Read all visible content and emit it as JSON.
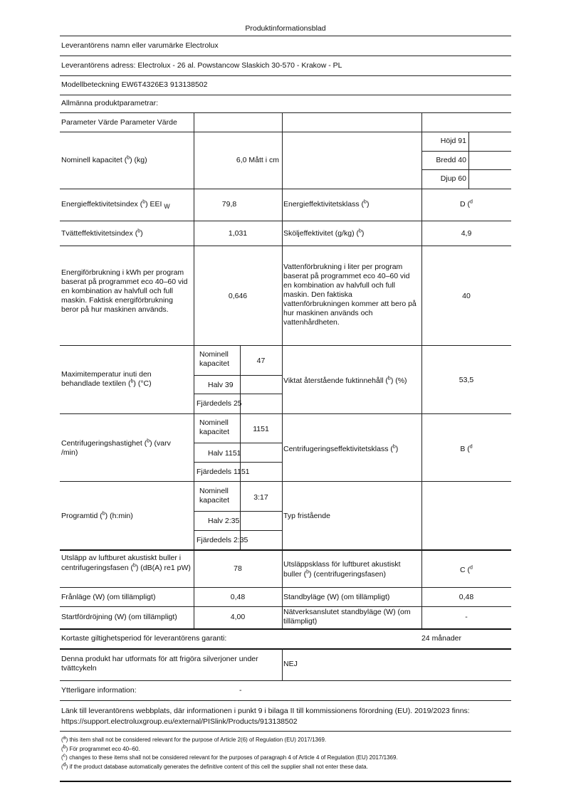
{
  "title": "Produktinformationsblad",
  "supplier_name": "Leverantörens namn eller varumärke Electrolux",
  "supplier_address": "Leverantörens adress: Electrolux - 26 al. Powstancow Slaskich 30-570 - Krakow - PL",
  "model": "Modellbeteckning EW6T4326E3 913138502",
  "general_params": "Allmänna produktparametrar:",
  "table_header": "Parameter Värde Parameter Värde",
  "rows": {
    "capacity": {
      "pre": "Nominell kapacitet (",
      "note": "b",
      "post": ") (kg)",
      "value": "6,0 Mått i cm",
      "height": "Höjd 91",
      "width": "Bredd 40",
      "depth": "Djup 60"
    },
    "eei": {
      "pre": "Energieffektivitetsindex (",
      "note": "b",
      "post": ") EEI",
      "sub": "W",
      "value": "79,8",
      "p2_pre": "Energieffektivitetsklass (",
      "p2_note": "b",
      "p2_post": ")",
      "v2_pre": "D (",
      "v2_note": "d",
      "v2_post": ""
    },
    "wash": {
      "pre": "Tvätteffektivitetsindex (",
      "note": "b",
      "post": ")",
      "value": "1,031",
      "p2_pre": "Sköljeffektivitet (g/kg) (",
      "p2_note": "b",
      "p2_post": ")",
      "v2": "4,9"
    },
    "energy": {
      "label": "Energiförbrukning i kWh per program baserat på programmet eco 40–60 vid en kombination av halvfull och full maskin. Faktisk energiförbrukning beror på hur maskinen används.",
      "value": "0,646",
      "p2": "Vattenförbrukning i liter per program baserat på programmet eco 40–60 vid en kombination av halvfull och full maskin. Den faktiska vattenförbrukningen kommer att bero på hur maskinen används och vattenhårdheten.",
      "v2": "40"
    },
    "temp": {
      "pre": "Maximitemperatur inuti den behandlade textilen (",
      "note": "b",
      "post": ") (°C)",
      "nominal_label": "Nominell kapacitet",
      "nominal": "47",
      "half": "Halv 39",
      "quarter": "Fjärdedels 25",
      "p2_pre": "Viktat återstående fuktinnehåll (",
      "p2_note": "b",
      "p2_post": ") (%)",
      "v2": "53,5"
    },
    "spin": {
      "pre": "Centrifugeringshastighet (",
      "note": "b",
      "post": ") (varv /min)",
      "nominal_label": "Nominell kapacitet",
      "nominal": "1151",
      "half": "Halv 1151",
      "quarter": "Fjärdedels 1151",
      "p2_pre": "Centrifugeringseffektivitetsklass (",
      "p2_note": "b",
      "p2_post": ")",
      "v2_pre": "B (",
      "v2_note": "d",
      "v2_post": ""
    },
    "time": {
      "pre": "Programtid (",
      "note": "b",
      "post": ") (h:min)",
      "nominal_label": "Nominell kapacitet",
      "nominal": "3:17",
      "half": "Halv 2:35",
      "quarter": "Fjärdedels 2:35",
      "p2": "Typ fristående"
    },
    "noise": {
      "pre": "Utsläpp av luftburet akustiskt buller i centrifugeringsfasen (",
      "note": "b",
      "post": ") (dB(A) re1 pW)",
      "value": "78",
      "p2_pre": "Utsläppsklass för luftburet akustiskt buller (",
      "p2_note": "b",
      "p2_post": ") (centrifugeringsfasen)",
      "v2_pre": "C (",
      "v2_note": "d",
      "v2_post": ""
    },
    "off": {
      "label": "Frånläge (W) (om tillämpligt)",
      "value": "0,48",
      "p2": "Standbyläge (W) (om tillämpligt)",
      "v2": "0,48"
    },
    "delay": {
      "label": "Startfördröjning (W) (om tillämpligt)",
      "value": "4,00",
      "p2": "Nätverksanslutet standbyläge (W) (om tillämpligt)",
      "v2": "-"
    }
  },
  "warranty": {
    "label": "Kortaste giltighetsperiod för leverantörens garanti:",
    "value": "24 månader"
  },
  "silver": {
    "label": "Denna produkt har utformats för att frigöra silverjoner under tvättcykeln",
    "value": "NEJ"
  },
  "extra": {
    "label": "Ytterligare information:",
    "value": "-"
  },
  "link_text": "Länk till leverantörens webbplats, där informationen i punkt 9 i bilaga II till kommissionens förordning (EU). 2019/2023 finns: https://support.electroluxgroup.eu/external/PISlink/Products/913138502",
  "footnotes": [
    {
      "mark": "a",
      "text": "this item shall not be considered relevant for the purpose of Article 2(6) of Regulation (EU) 2017/1369."
    },
    {
      "mark": "b",
      "text": "För programmet eco 40–60."
    },
    {
      "mark": "c",
      "text": "changes to these items shall not be considered relevant for the purposes of paragraph 4 of Article 4 of Regulation (EU) 2017/1369."
    },
    {
      "mark": "d",
      "text": "if the product database automatically generates the definitive content of this cell the supplier shall not enter these data."
    }
  ]
}
